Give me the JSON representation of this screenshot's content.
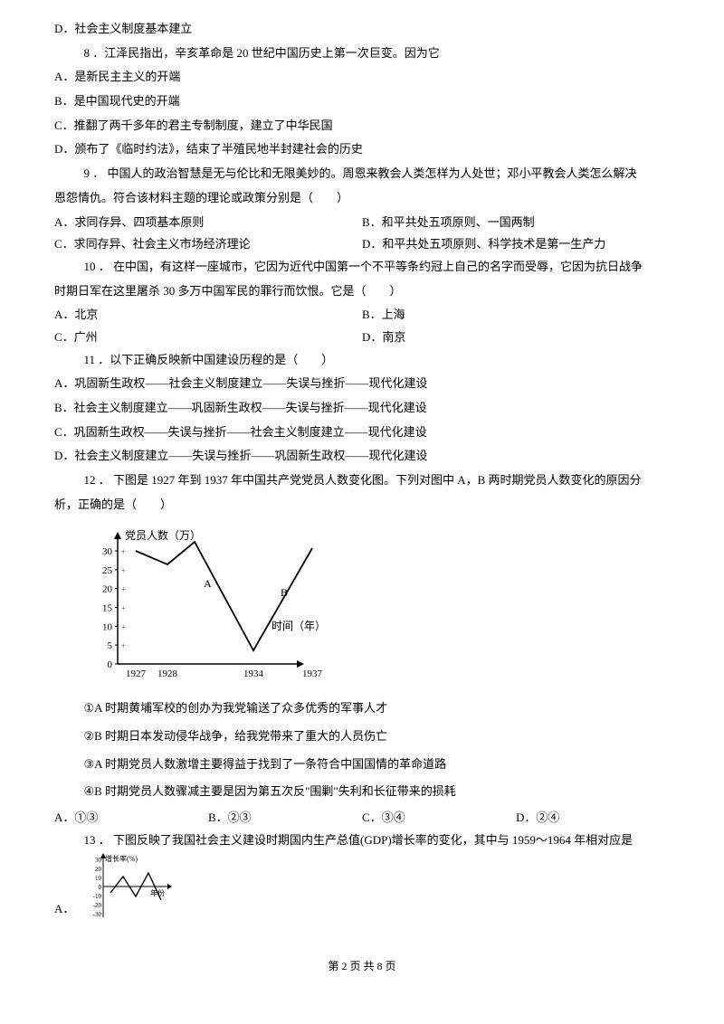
{
  "q7d": "D．社会主义制度基本建立",
  "q8": {
    "stem": "8 ．江泽民指出，辛亥革命是 20 世纪中国历史上第一次巨变。因为它",
    "a": "A．是新民主主义的开端",
    "b": "B．是中国现代史的开端",
    "c": "C．推翻了两千多年的君主专制制度，建立了中华民国",
    "d": "D．颁布了《临时约法》，结束了半殖民地半封建社会的历史"
  },
  "q9": {
    "stem1": "9 ． 中国人的政治智慧是无与伦比和无限美妙的。周恩来教会人类怎样为人处世；邓小平教会人类怎么解决",
    "stem2": "恩怨情仇。符合该材料主题的理论或政策分别是（　　）",
    "a": "A．求同存异、四项基本原则",
    "b": "B．和平共处五项原则、一国两制",
    "c": "C．求同存异、社会主义市场经济理论",
    "d": "D．和平共处五项原则、科学技术是第一生产力"
  },
  "q10": {
    "stem1": "10 ． 在中国，有这样一座城市，它因为近代中国第一个不平等条约冠上自己的名字而受辱，它因为抗日战争",
    "stem2": "时期日军在这里屠杀 30 多万中国军民的罪行而饮恨。它是（　　）",
    "a": "A．北京",
    "b": "B．上海",
    "c": "C．广州",
    "d": "D．南京"
  },
  "q11": {
    "stem": "11 ．以下正确反映新中国建设历程的是（　　）",
    "a": "A．巩固新生政权——社会主义制度建立——失误与挫折——现代化建设",
    "b": "B．社会主义制度建立——巩固新生政权——失误与挫折——现代化建设",
    "c": "C．巩固新生政权——失误与挫折——社会主义制度建立——现代化建设",
    "d": "D．社会主义制度建立——失误与挫折——巩固新生政权——现代化建设"
  },
  "q12": {
    "stem1": "12 ． 下图是 1927 年到 1937 年中国共产党党员人数变化图。下列对图中 A，B 两时期党员人数变化的原因分",
    "stem2": "析，正确的是（　　）",
    "s1": "①A 时期黄埔军校的创办为我党输送了众多优秀的军事人才",
    "s2": "②B 时期日本发动侵华战争，给我党带来了重大的人员伤亡",
    "s3": "③A 时期党员人数激增主要得益于找到了一条符合中国国情的革命道路",
    "s4": "④B 时期党员人数骤减主要是因为第五次反\"围剿\"失利和长征带来的损耗",
    "a": "A．①③",
    "b": "B．②③",
    "c": "C．③④",
    "d": "D．②④"
  },
  "chart1": {
    "ylabel": "党员人数（万）",
    "xlabel": "时间（年）",
    "yticks": [
      "0",
      "5",
      "10",
      "15",
      "20",
      "25",
      "30"
    ],
    "xticks": [
      "1927",
      "1928",
      "1934",
      "1937"
    ],
    "labelA": "A",
    "labelB": "B",
    "points": [
      [
        20,
        125
      ],
      [
        55,
        110
      ],
      [
        85,
        135
      ],
      [
        150,
        15
      ],
      [
        215,
        128
      ]
    ],
    "apos": [
      95,
      85
    ],
    "bpos": [
      180,
      75
    ],
    "axis_color": "#000",
    "line_color": "#000",
    "bg": "#fff"
  },
  "q13": {
    "stem": "13 ． 下图反映了我国社会主义建设时期国内生产总值(GDP)增长率的变化，其中与 1959～1964 年相对应是",
    "a_prefix": "A．"
  },
  "chart2": {
    "ylabel": "增长率(%)",
    "xlabel": "年份",
    "yticks": [
      "-30",
      "-20",
      "-10",
      "0",
      "10",
      "20",
      "30"
    ],
    "points": [
      [
        8,
        18
      ],
      [
        22,
        36
      ],
      [
        36,
        14
      ],
      [
        50,
        40
      ],
      [
        64,
        10
      ]
    ],
    "axis_color": "#000",
    "line_color": "#000"
  },
  "footer": "第 2 页 共 8 页"
}
